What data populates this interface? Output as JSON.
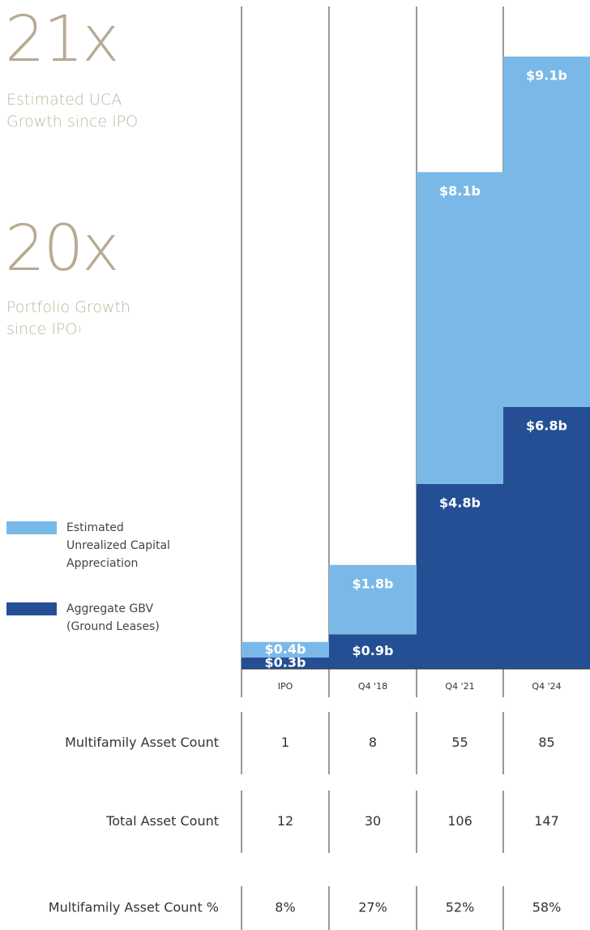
{
  "chart_data": {
    "type": "stacked_bar",
    "categories": [
      "IPO",
      "Q4 '18",
      "Q4 '21",
      "Q4 '24"
    ],
    "series": [
      {
        "name": "Aggregate GBV (Ground Leases)",
        "color": "#244f95",
        "values": [
          0.3,
          0.9,
          4.8,
          6.8
        ],
        "value_labels": [
          "$0.3b",
          "$0.9b",
          "$4.8b",
          "$6.8b"
        ]
      },
      {
        "name": "Estimated Unrealized Capital Appreciation",
        "color": "#7ab9e7",
        "values": [
          0.4,
          1.8,
          8.1,
          9.1
        ],
        "value_labels": [
          "$0.4b",
          "$1.8b",
          "$8.1b",
          "$9.1b"
        ]
      }
    ],
    "ylim": [
      0,
      17
    ]
  },
  "stats": [
    {
      "value": "21x",
      "lines": [
        "Estimated UCA",
        "Growth since IPO"
      ]
    },
    {
      "value": "20x",
      "lines": [
        "Portfolio Growth",
        "since IPO"
      ],
      "footnote": "1"
    }
  ],
  "table": {
    "rows": [
      {
        "label": "Multifamily Asset Count",
        "cells": [
          "1",
          "8",
          "55",
          "85"
        ]
      },
      {
        "label": "Total Asset Count",
        "cells": [
          "12",
          "30",
          "106",
          "147"
        ]
      },
      {
        "label": "Multifamily Asset Count %",
        "cells": [
          "8%",
          "27%",
          "52%",
          "58%"
        ]
      }
    ]
  }
}
